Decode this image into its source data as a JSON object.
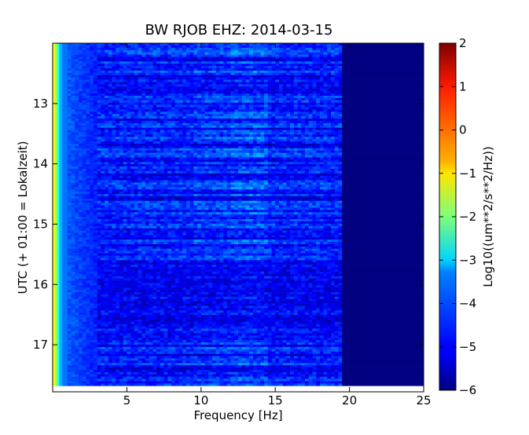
{
  "chart_data": {
    "type": "heatmap",
    "title": "BW RJOB EHZ: 2014-03-15",
    "xlabel": "Frequency [Hz]",
    "ylabel": "UTC (+ 01:00 = Lokalzeit)",
    "colorbar_label": "Log10((um**2/s**2/Hz))",
    "xlim": [
      0,
      25
    ],
    "ylim": [
      17.78,
      12.0
    ],
    "x_ticks": [
      5,
      10,
      15,
      20,
      25
    ],
    "y_ticks": [
      13,
      14,
      15,
      16,
      17
    ],
    "color_range": [
      -6,
      2
    ],
    "colorbar_ticks": [
      2,
      1,
      0,
      -1,
      -2,
      -3,
      -4,
      -5,
      -6
    ],
    "colormap": "jet",
    "data_time_range": [
      12.0,
      17.68
    ],
    "data_freq_range": [
      0,
      25
    ],
    "grid": false,
    "description_regions": [
      {
        "freq": [
          0,
          0.4
        ],
        "level": -1.0
      },
      {
        "freq": [
          0.4,
          3
        ],
        "level": -4.2
      },
      {
        "freq": [
          3,
          19.5
        ],
        "level": -4.9
      },
      {
        "freq": [
          19.5,
          25
        ],
        "level": -6.0
      }
    ]
  }
}
